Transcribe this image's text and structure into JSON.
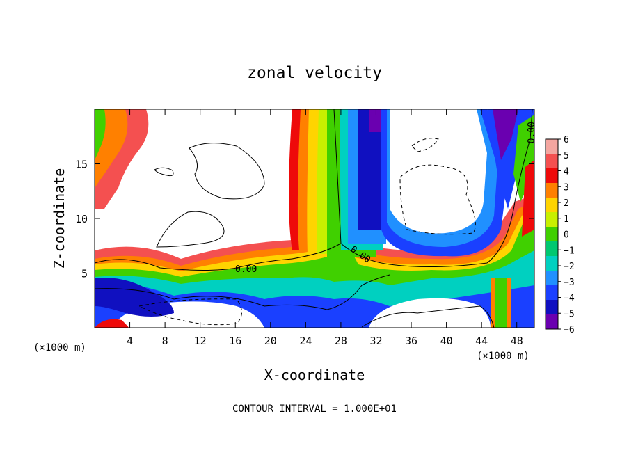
{
  "chart_data": {
    "type": "heatmap",
    "title": "zonal velocity",
    "xlabel": "X-coordinate",
    "ylabel": "Z-coordinate",
    "x_unit_label": "(×1000 m)",
    "x_unit_label_right": "(×1000 m)",
    "xlim": [
      0,
      50
    ],
    "ylim": [
      0,
      20
    ],
    "x_ticks": [
      4,
      8,
      12,
      16,
      20,
      24,
      28,
      32,
      36,
      40,
      44,
      48
    ],
    "x_tick_labels": [
      "4",
      "8",
      "12",
      "16",
      "20",
      "24",
      "28",
      "32",
      "36",
      "40",
      "44",
      "48"
    ],
    "y_ticks": [
      5,
      10,
      15
    ],
    "y_tick_labels": [
      "5",
      "10",
      "15"
    ],
    "colorbar": {
      "levels": [
        6,
        5,
        4,
        3,
        2,
        1,
        0,
        -1,
        -2,
        -3,
        -4,
        -5,
        -6
      ],
      "labels": [
        "6",
        "5",
        "4",
        "3",
        "2",
        "1",
        "0",
        "−1",
        "−2",
        "−3",
        "−4",
        "−5",
        "−6"
      ],
      "colors": [
        "#f4a6a0",
        "#f45050",
        "#ee0a0a",
        "#ff8000",
        "#ffd400",
        "#c8f000",
        "#40d000",
        "#00c870",
        "#00d0c0",
        "#2090ff",
        "#1a40ff",
        "#1010c0",
        "#6a00b0"
      ]
    },
    "contour_labels": [
      "0.00",
      "0.00",
      "0.00"
    ],
    "contour_interval_text": "CONTOUR INTERVAL = 1.000E+01"
  }
}
